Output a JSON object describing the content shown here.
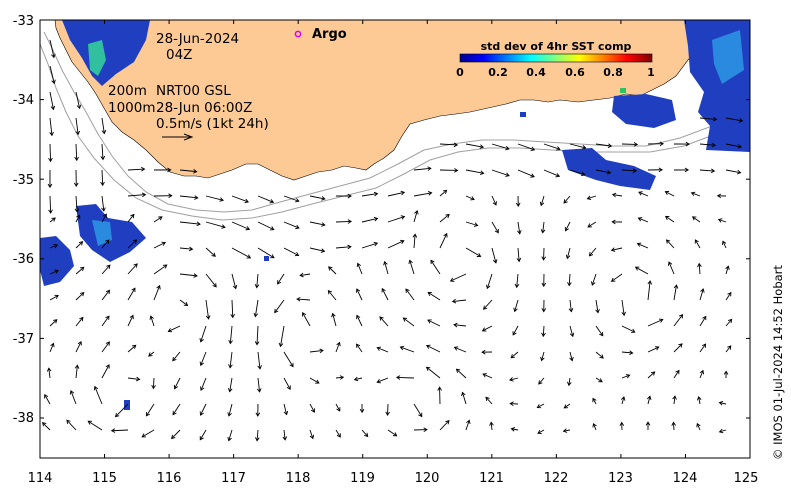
{
  "annotations": {
    "date": "28-Jun-2024",
    "hour": "04Z",
    "contour_200": "200m",
    "product": "NRT00 GSL",
    "contour_1000": "1000m",
    "product_time": "28-Jun 06:00Z",
    "scale_label": "0.5m/s (1kt 24h)"
  },
  "legend": {
    "argo_label": "Argo",
    "argo_color": "#e000e0"
  },
  "colorbar": {
    "title": "std dev of 4hr SST comp",
    "ticks": [
      "0",
      "0.2",
      "0.4",
      "0.6",
      "0.8",
      "1"
    ],
    "colormap": "jet"
  },
  "credit": "© IMOS 01-Jul-2024 14:52 Hobart",
  "axes": {
    "x_ticks": [
      "114",
      "115",
      "116",
      "117",
      "118",
      "119",
      "120",
      "121",
      "122",
      "123",
      "124",
      "125"
    ],
    "y_ticks": [
      "-33",
      "-34",
      "-35",
      "-36",
      "-37",
      "-38"
    ],
    "xlim": [
      114,
      125
    ],
    "ylim": [
      -38.5,
      -33
    ]
  },
  "colors": {
    "land": "#fdca96",
    "ocean": "#ffffff",
    "bathymetry": "#a0a0a0",
    "arrows": "#000000"
  }
}
